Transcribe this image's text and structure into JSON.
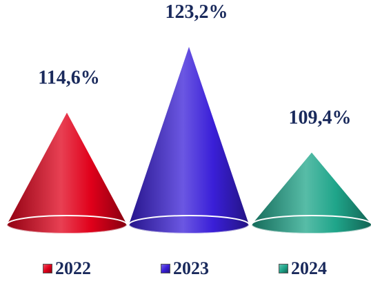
{
  "chart_data": {
    "type": "bar",
    "shape": "cone",
    "categories": [
      "2022",
      "2023",
      "2024"
    ],
    "values": [
      114.6,
      123.2,
      109.4
    ],
    "value_labels": [
      "114,6%",
      "123,2%",
      "109,4%"
    ],
    "ylim": [
      100,
      125
    ],
    "colors": [
      "#e0001a",
      "#3a1fd8",
      "#1fa58a"
    ],
    "label_color": "#1a2a5c",
    "title": "",
    "xlabel": "",
    "ylabel": "",
    "grid": false,
    "legend": {
      "position": "bottom",
      "entries": [
        "2022",
        "2023",
        "2024"
      ]
    }
  }
}
